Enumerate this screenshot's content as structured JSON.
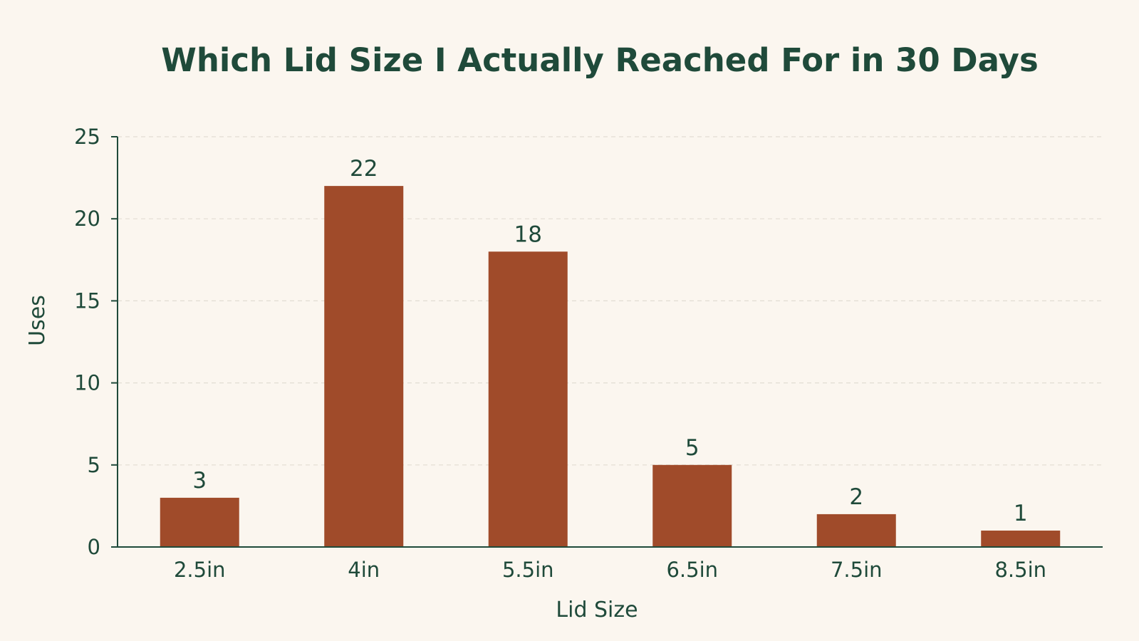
{
  "colors": {
    "background": "#FBF6EF",
    "text": "#1F4A3A",
    "bar": "#A04B2A",
    "grid": "#E2DDD3",
    "axis": "#1F4A3A"
  },
  "chart_data": {
    "type": "bar",
    "title": "Which Lid Size I Actually Reached For in 30 Days",
    "xlabel": "Lid Size",
    "ylabel": "Uses",
    "categories": [
      "2.5in",
      "4in",
      "5.5in",
      "6.5in",
      "7.5in",
      "8.5in"
    ],
    "values": [
      3,
      22,
      18,
      5,
      2,
      1
    ],
    "ylim": [
      0,
      25
    ],
    "yticks": [
      0,
      5,
      10,
      15,
      20,
      25
    ],
    "grid": true,
    "data_labels": true
  }
}
